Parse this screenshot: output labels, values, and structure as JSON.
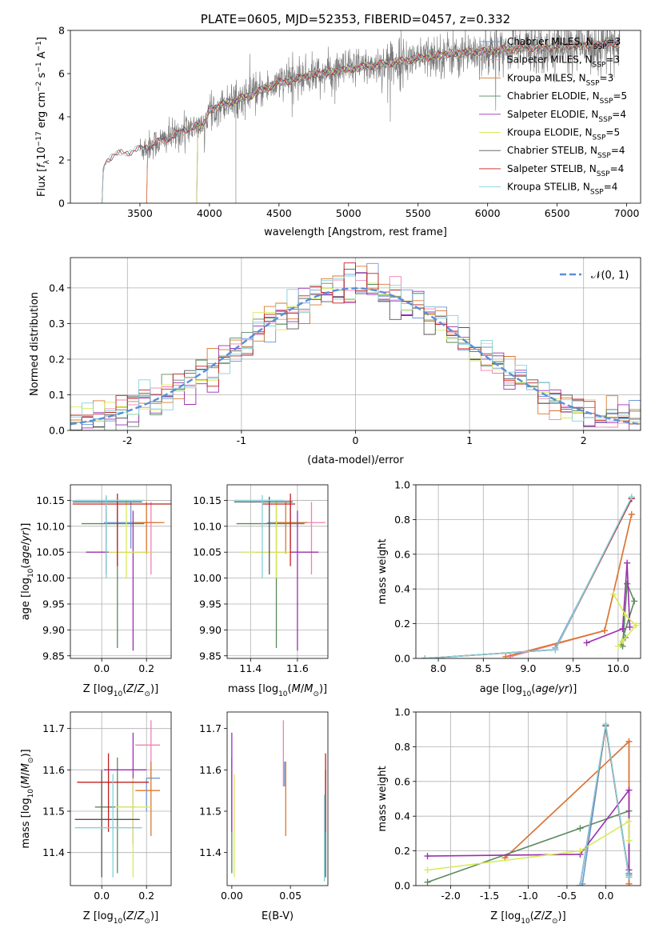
{
  "colors": {
    "Chabrier MILES": "#6f98d8",
    "Salpeter MILES": "#f180b2",
    "Kroupa MILES": "#d9782e",
    "Chabrier ELODIE": "#5a8a5e",
    "Salpeter ELODIE": "#9c2fb0",
    "Kroupa ELODIE": "#d8eb5a",
    "Chabrier STELIB": "#555555",
    "Salpeter STELIB": "#c21f1f",
    "Kroupa STELIB": "#86d0d8",
    "normal": "#5b8ed8",
    "grid": "#b0b0b0"
  },
  "chart_data": [
    {
      "id": "spectrum",
      "type": "line",
      "title": "PLATE=0605, MJD=52353, FIBERID=0457, z=0.332",
      "xlabel": "wavelength [Angstrom, rest frame]",
      "ylabel": "Flux [f_λ 10^-17 erg cm^-2 s^-1 A^-1]",
      "xlim": [
        3000,
        7100
      ],
      "ylim": [
        0,
        8
      ],
      "xticks": [
        3500,
        4000,
        4500,
        5000,
        5500,
        6000,
        6500,
        7000
      ],
      "yticks": [
        0,
        2,
        4,
        6,
        8
      ],
      "grid": false,
      "legend_position": "top-right",
      "legend": [
        {
          "model": "Chabrier MILES",
          "pre": "Chabrier MILES, N",
          "n": "3"
        },
        {
          "model": "Salpeter MILES",
          "pre": "Salpeter MILES, N",
          "n": "3"
        },
        {
          "model": "Kroupa MILES",
          "pre": "Kroupa MILES, N",
          "n": "3"
        },
        {
          "model": "Chabrier ELODIE",
          "pre": "Chabrier ELODIE, N",
          "n": "5"
        },
        {
          "model": "Salpeter ELODIE",
          "pre": "Salpeter ELODIE, N",
          "n": "4"
        },
        {
          "model": "Kroupa ELODIE",
          "pre": "Kroupa ELODIE, N",
          "n": "5"
        },
        {
          "model": "Chabrier STELIB",
          "pre": "Chabrier STELIB, N",
          "n": "4"
        },
        {
          "model": "Salpeter STELIB",
          "pre": "Salpeter STELIB, N",
          "n": "4"
        },
        {
          "model": "Kroupa STELIB",
          "pre": "Kroupa STELIB, N",
          "n": "4"
        }
      ],
      "legend_sub": "SSP",
      "legend_eq": "=",
      "continuum": {
        "x": [
          3220,
          3240,
          3260,
          3300,
          3400,
          3500,
          3600,
          3700,
          3800,
          3900,
          3950,
          4000,
          4100,
          4200,
          4300,
          4400,
          4500,
          4600,
          4700,
          4800,
          4900,
          5000,
          5100,
          5200,
          5300,
          5400,
          5500,
          5600,
          5700,
          5800,
          5900,
          6000,
          6100,
          6200,
          6300,
          6400,
          6500,
          6600,
          6700,
          6800,
          6900
        ],
        "y": [
          0.5,
          1.7,
          2.0,
          2.2,
          2.35,
          2.5,
          2.75,
          3.0,
          3.3,
          3.6,
          3.5,
          4.3,
          4.6,
          4.8,
          5.0,
          5.3,
          5.6,
          5.7,
          5.9,
          6.0,
          6.1,
          6.2,
          6.3,
          6.4,
          6.5,
          6.6,
          6.7,
          6.8,
          6.9,
          6.95,
          7.0,
          7.05,
          7.1,
          7.15,
          7.2,
          7.2,
          7.25,
          7.3,
          7.3,
          7.35,
          7.4
        ]
      },
      "data_x_range": [
        3500,
        6950
      ],
      "model_starts": [
        {
          "model": "Chabrier MILES",
          "x": 3540
        },
        {
          "model": "Salpeter MILES",
          "x": 3540
        },
        {
          "model": "Kroupa MILES",
          "x": 3540
        },
        {
          "model": "Chabrier ELODIE",
          "x": 3900
        },
        {
          "model": "Salpeter ELODIE",
          "x": 3900
        },
        {
          "model": "Kroupa ELODIE",
          "x": 3900
        },
        {
          "model": "Chabrier STELIB",
          "x": 3220
        },
        {
          "model": "Salpeter STELIB",
          "x": 3220
        },
        {
          "model": "Kroupa STELIB",
          "x": 3220
        }
      ]
    },
    {
      "id": "residuals",
      "type": "histogram",
      "xlabel": "(data-model)/error",
      "ylabel": "Normed distribution",
      "xlim": [
        -2.5,
        2.5
      ],
      "ylim": [
        0,
        0.485
      ],
      "xticks": [
        -2,
        -1,
        0,
        1,
        2
      ],
      "yticks": [
        0.0,
        0.1,
        0.2,
        0.3,
        0.4
      ],
      "grid": true,
      "bin_width": 0.1,
      "legend_label": "𝒩(0, 1)",
      "legend_position": "top-right"
    },
    {
      "id": "age_vs_Z",
      "type": "errorbar",
      "xlabel": "Z [log10(Z/Z⊙)]",
      "ylabel": "age [log10(age/yr)]",
      "xlim": [
        -0.14,
        0.31
      ],
      "ylim": [
        9.845,
        10.18
      ],
      "xticks": [
        0.0,
        0.2
      ],
      "yticks": [
        9.85,
        9.9,
        9.95,
        10.0,
        10.05,
        10.1,
        10.15
      ],
      "grid": true,
      "points": [
        {
          "model": "Chabrier MILES",
          "x": 0.13,
          "xerr": [
            0.12,
            0.09
          ],
          "y": 10.107,
          "yerr": [
            0.05,
            0.04
          ]
        },
        {
          "model": "Salpeter MILES",
          "x": 0.22,
          "xerr": [
            0.05,
            0.03
          ],
          "y": 10.107,
          "yerr": [
            0.1,
            0.04
          ]
        },
        {
          "model": "Kroupa MILES",
          "x": 0.2,
          "xerr": [
            0.06,
            0.08
          ],
          "y": 10.107,
          "yerr": [
            0.06,
            0.04
          ]
        },
        {
          "model": "Chabrier ELODIE",
          "x": 0.07,
          "xerr": [
            0.16,
            0.12
          ],
          "y": 10.105,
          "yerr": [
            0.24,
            0.04
          ]
        },
        {
          "model": "Salpeter ELODIE",
          "x": 0.14,
          "xerr": [
            0.21,
            0.07
          ],
          "y": 10.05,
          "yerr": [
            0.19,
            0.08
          ]
        },
        {
          "model": "Kroupa ELODIE",
          "x": 0.11,
          "xerr": [
            0.08,
            0.11
          ],
          "y": 10.05,
          "yerr": [
            0.05,
            0.1
          ]
        },
        {
          "model": "Chabrier STELIB",
          "x": 0.02,
          "xerr": [
            0.15,
            0.16
          ],
          "y": 10.147,
          "yerr": [
            0.14,
            0.01
          ]
        },
        {
          "model": "Salpeter STELIB",
          "x": 0.07,
          "xerr": [
            0.2,
            0.24
          ],
          "y": 10.143,
          "yerr": [
            0.12,
            0.02
          ]
        },
        {
          "model": "Kroupa STELIB",
          "x": 0.02,
          "xerr": [
            0.14,
            0.17
          ],
          "y": 10.15,
          "yerr": [
            0.15,
            0.01
          ]
        }
      ]
    },
    {
      "id": "age_vs_mass",
      "type": "errorbar",
      "xlabel": "mass [log10(M/M⊙)]",
      "ylabel": "",
      "xlim": [
        11.3,
        11.73
      ],
      "ylim": [
        9.845,
        10.18
      ],
      "xticks": [
        11.4,
        11.6
      ],
      "yticks": [
        9.85,
        9.9,
        9.95,
        10.0,
        10.05,
        10.1,
        10.15
      ],
      "grid": true,
      "points": [
        {
          "model": "Chabrier MILES",
          "x": 11.57,
          "xerr": [
            0.1,
            0.03
          ],
          "y": 10.107,
          "yerr": [
            0.05,
            0.04
          ]
        },
        {
          "model": "Salpeter MILES",
          "x": 11.66,
          "xerr": [
            0.06,
            0.06
          ],
          "y": 10.107,
          "yerr": [
            0.1,
            0.04
          ]
        },
        {
          "model": "Kroupa MILES",
          "x": 11.55,
          "xerr": [
            0.05,
            0.09
          ],
          "y": 10.107,
          "yerr": [
            0.06,
            0.04
          ]
        },
        {
          "model": "Chabrier ELODIE",
          "x": 11.51,
          "xerr": [
            0.17,
            0.12
          ],
          "y": 10.105,
          "yerr": [
            0.24,
            0.04
          ]
        },
        {
          "model": "Salpeter ELODIE",
          "x": 11.6,
          "xerr": [
            0.18,
            0.09
          ],
          "y": 10.05,
          "yerr": [
            0.19,
            0.08
          ]
        },
        {
          "model": "Kroupa ELODIE",
          "x": 11.51,
          "xerr": [
            0.15,
            0.06
          ],
          "y": 10.05,
          "yerr": [
            0.05,
            0.1
          ]
        },
        {
          "model": "Chabrier STELIB",
          "x": 11.48,
          "xerr": [
            0.15,
            0.1
          ],
          "y": 10.147,
          "yerr": [
            0.14,
            0.01
          ]
        },
        {
          "model": "Salpeter STELIB",
          "x": 11.57,
          "xerr": [
            0.12,
            0.02
          ],
          "y": 10.143,
          "yerr": [
            0.12,
            0.02
          ]
        },
        {
          "model": "Kroupa STELIB",
          "x": 11.45,
          "xerr": [
            0.12,
            0.09
          ],
          "y": 10.15,
          "yerr": [
            0.15,
            0.01
          ]
        }
      ]
    },
    {
      "id": "weight_vs_age",
      "type": "line",
      "xlabel": "age [log10(age/yr)]",
      "ylabel": "mass weight",
      "xlim": [
        7.75,
        10.25
      ],
      "ylim": [
        0,
        1.0
      ],
      "xticks": [
        8.0,
        8.5,
        9.0,
        9.5,
        10.0
      ],
      "yticks": [
        0.0,
        0.2,
        0.4,
        0.6,
        0.8,
        1.0
      ],
      "grid": true,
      "series": [
        {
          "model": "Chabrier MILES",
          "x": [
            9.3,
            10.15
          ],
          "y": [
            0.06,
            0.92
          ]
        },
        {
          "model": "Salpeter MILES",
          "x": [
            8.8,
            9.85,
            10.15
          ],
          "y": [
            0.01,
            0.16,
            0.83
          ]
        },
        {
          "model": "Kroupa MILES",
          "x": [
            8.75,
            9.85,
            10.15
          ],
          "y": [
            0.01,
            0.16,
            0.83
          ]
        },
        {
          "model": "Chabrier ELODIE",
          "x": [
            10.05,
            10.1,
            10.18,
            10.03,
            10.08
          ],
          "y": [
            0.07,
            0.43,
            0.33,
            0.08,
            0.12
          ]
        },
        {
          "model": "Salpeter ELODIE",
          "x": [
            9.65,
            10.05,
            10.1,
            10.13
          ],
          "y": [
            0.09,
            0.17,
            0.55,
            0.18
          ]
        },
        {
          "model": "Kroupa ELODIE",
          "x": [
            9.95,
            10.08,
            10.2,
            10.0,
            10.05
          ],
          "y": [
            0.37,
            0.25,
            0.19,
            0.07,
            0.1
          ]
        },
        {
          "model": "Chabrier STELIB",
          "x": [
            7.85,
            9.3,
            10.15
          ],
          "y": [
            0.0,
            0.05,
            0.92
          ]
        },
        {
          "model": "Salpeter STELIB",
          "x": [
            7.85,
            9.3,
            10.15
          ],
          "y": [
            0.0,
            0.05,
            0.92
          ]
        },
        {
          "model": "Kroupa STELIB",
          "x": [
            7.85,
            9.3,
            10.15
          ],
          "y": [
            0.0,
            0.05,
            0.93
          ]
        }
      ]
    },
    {
      "id": "mass_vs_Z",
      "type": "errorbar",
      "xlabel": "Z [log10(Z/Z⊙)]",
      "ylabel": "mass [log10(M/M⊙)]",
      "xlim": [
        -0.14,
        0.31
      ],
      "ylim": [
        11.32,
        11.74
      ],
      "xticks": [
        0.0,
        0.2
      ],
      "yticks": [
        11.4,
        11.5,
        11.6,
        11.7
      ],
      "grid": true,
      "points": [
        {
          "model": "Chabrier MILES",
          "x": 0.2,
          "xerr": [
            0.0,
            0.06
          ],
          "y": 11.58,
          "yerr": [
            0.08,
            0.0
          ]
        },
        {
          "model": "Salpeter MILES",
          "x": 0.22,
          "xerr": [
            0.07,
            0.04
          ],
          "y": 11.66,
          "yerr": [
            0.08,
            0.06
          ]
        },
        {
          "model": "Kroupa MILES",
          "x": 0.22,
          "xerr": [
            0.07,
            0.04
          ],
          "y": 11.55,
          "yerr": [
            0.11,
            0.07
          ]
        },
        {
          "model": "Chabrier ELODIE",
          "x": 0.07,
          "xerr": [
            0.1,
            0.08
          ],
          "y": 11.51,
          "yerr": [
            0.16,
            0.12
          ]
        },
        {
          "model": "Salpeter ELODIE",
          "x": 0.14,
          "xerr": [
            0.13,
            0.06
          ],
          "y": 11.6,
          "yerr": [
            0.18,
            0.09
          ]
        },
        {
          "model": "Kroupa ELODIE",
          "x": 0.14,
          "xerr": [
            0.08,
            0.08
          ],
          "y": 11.51,
          "yerr": [
            0.17,
            0.07
          ]
        },
        {
          "model": "Chabrier STELIB",
          "x": 0.0,
          "xerr": [
            0.12,
            0.17
          ],
          "y": 11.48,
          "yerr": [
            0.14,
            0.12
          ]
        },
        {
          "model": "Salpeter STELIB",
          "x": 0.03,
          "xerr": [
            0.14,
            0.18
          ],
          "y": 11.57,
          "yerr": [
            0.12,
            0.07
          ]
        },
        {
          "model": "Kroupa STELIB",
          "x": 0.05,
          "xerr": [
            0.17,
            0.13
          ],
          "y": 11.46,
          "yerr": [
            0.12,
            0.13
          ]
        }
      ]
    },
    {
      "id": "mass_vs_ebv",
      "type": "errorbar",
      "xlabel": "E(B-V)",
      "ylabel": "",
      "xlim": [
        -0.004,
        0.082
      ],
      "ylim": [
        11.32,
        11.74
      ],
      "xticks": [
        0.0,
        0.05
      ],
      "yticks": [
        11.4,
        11.5,
        11.6,
        11.7
      ],
      "grid": false,
      "points": [
        {
          "model": "Chabrier MILES",
          "x": 0.045,
          "yval": 11.62,
          "yerr": [
            0.06,
            0.0
          ]
        },
        {
          "model": "Salpeter MILES",
          "x": 0.044,
          "yval": 11.66,
          "yerr": [
            0.1,
            0.06
          ]
        },
        {
          "model": "Kroupa MILES",
          "x": 0.046,
          "yval": 11.55,
          "yerr": [
            0.11,
            0.07
          ]
        },
        {
          "model": "Chabrier ELODIE",
          "x": 0.0,
          "yval": 11.51,
          "yerr": [
            0.16,
            0.12
          ]
        },
        {
          "model": "Salpeter ELODIE",
          "x": 0.0,
          "yval": 11.6,
          "yerr": [
            0.15,
            0.09
          ]
        },
        {
          "model": "Kroupa ELODIE",
          "x": 0.002,
          "yval": 11.51,
          "yerr": [
            0.17,
            0.08
          ]
        },
        {
          "model": "Chabrier STELIB",
          "x": 0.08,
          "yval": 11.48,
          "yerr": [
            0.14,
            0.12
          ]
        },
        {
          "model": "Salpeter STELIB",
          "x": 0.08,
          "yval": 11.57,
          "yerr": [
            0.12,
            0.07
          ]
        },
        {
          "model": "Kroupa STELIB",
          "x": 0.079,
          "yval": 11.46,
          "yerr": [
            0.13,
            0.08
          ]
        }
      ]
    },
    {
      "id": "weight_vs_Z",
      "type": "line",
      "xlabel": "Z [log10(Z/Z⊙)]",
      "ylabel": "mass weight",
      "xlim": [
        -2.45,
        0.45
      ],
      "ylim": [
        0,
        1.0
      ],
      "xticks": [
        -2.0,
        -1.5,
        -1.0,
        -0.5,
        0.0
      ],
      "yticks": [
        0.0,
        0.2,
        0.4,
        0.6,
        0.8,
        1.0
      ],
      "grid": true,
      "series": [
        {
          "model": "Chabrier MILES",
          "x": [
            -0.3,
            0.0,
            0.3
          ],
          "y": [
            0.01,
            0.92,
            0.06
          ]
        },
        {
          "model": "Salpeter MILES",
          "x": [
            -1.3,
            0.3,
            0.3
          ],
          "y": [
            0.16,
            0.83,
            0.01
          ]
        },
        {
          "model": "Kroupa MILES",
          "x": [
            -1.3,
            0.3,
            0.3
          ],
          "y": [
            0.16,
            0.83,
            0.01
          ]
        },
        {
          "model": "Chabrier ELODIE",
          "x": [
            -2.3,
            -0.33,
            0.3,
            0.3
          ],
          "y": [
            0.02,
            0.33,
            0.43,
            0.07
          ]
        },
        {
          "model": "Salpeter ELODIE",
          "x": [
            -2.3,
            -0.33,
            0.3,
            0.3
          ],
          "y": [
            0.17,
            0.18,
            0.55,
            0.09
          ]
        },
        {
          "model": "Kroupa ELODIE",
          "x": [
            -2.3,
            -0.33,
            0.3,
            0.3
          ],
          "y": [
            0.09,
            0.2,
            0.37,
            0.26
          ]
        },
        {
          "model": "Chabrier STELIB",
          "x": [
            -0.33,
            0.0,
            0.3
          ],
          "y": [
            0.0,
            0.92,
            0.05
          ]
        },
        {
          "model": "Salpeter STELIB",
          "x": [
            -0.33,
            0.0,
            0.3
          ],
          "y": [
            0.0,
            0.92,
            0.05
          ]
        },
        {
          "model": "Kroupa STELIB",
          "x": [
            -0.33,
            0.0,
            0.3
          ],
          "y": [
            0.0,
            0.93,
            0.05
          ]
        }
      ]
    }
  ]
}
